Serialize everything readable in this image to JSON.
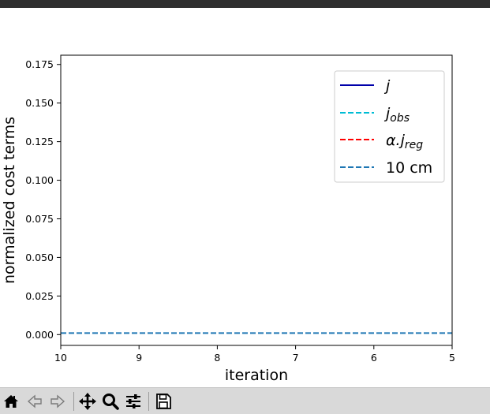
{
  "window": {
    "titlebar_color": "#2f2f2f"
  },
  "toolbar": {
    "buttons": [
      {
        "name": "home-icon",
        "enabled": true
      },
      {
        "name": "back-arrow-icon",
        "enabled": false
      },
      {
        "name": "forward-arrow-icon",
        "enabled": false
      },
      {
        "name": "pan-icon",
        "enabled": true
      },
      {
        "name": "zoom-icon",
        "enabled": true
      },
      {
        "name": "configure-subplots-icon",
        "enabled": true
      },
      {
        "name": "save-icon",
        "enabled": true
      }
    ]
  },
  "chart_data": {
    "type": "line",
    "title": "",
    "xlabel": "iteration",
    "ylabel": "normalized cost terms",
    "xlim": [
      10,
      5
    ],
    "ylim": [
      -0.007,
      0.181
    ],
    "x_ticks": [
      10,
      9,
      8,
      7,
      6,
      5
    ],
    "x_tick_labels": [
      "10",
      "9",
      "8",
      "7",
      "6",
      "5"
    ],
    "y_ticks": [
      0.0,
      0.025,
      0.05,
      0.075,
      0.1,
      0.125,
      0.15,
      0.175
    ],
    "y_tick_labels": [
      "0.000",
      "0.025",
      "0.050",
      "0.075",
      "0.100",
      "0.125",
      "0.150",
      "0.175"
    ],
    "grid": false,
    "legend_position": "upper right",
    "series": [
      {
        "name": "j",
        "style": "solid",
        "color": "#0000aa",
        "x": [],
        "y": []
      },
      {
        "name": "j_obs",
        "style": "dashed",
        "color": "#00bcd4",
        "x": [],
        "y": []
      },
      {
        "name": "α.j_reg",
        "style": "dashed",
        "color": "#ff0000",
        "x": [],
        "y": []
      },
      {
        "name": "10 cm",
        "style": "dashed",
        "color": "#1f77b4",
        "x": [
          10,
          5
        ],
        "y": [
          0.001,
          0.001
        ]
      }
    ],
    "legend": [
      {
        "main": "j",
        "sub": "",
        "prefix": ""
      },
      {
        "main": "j",
        "sub": "obs",
        "prefix": ""
      },
      {
        "main": "j",
        "sub": "reg",
        "prefix": "α."
      },
      {
        "main": "10 cm",
        "sub": "",
        "prefix": "",
        "upright": true
      }
    ]
  }
}
